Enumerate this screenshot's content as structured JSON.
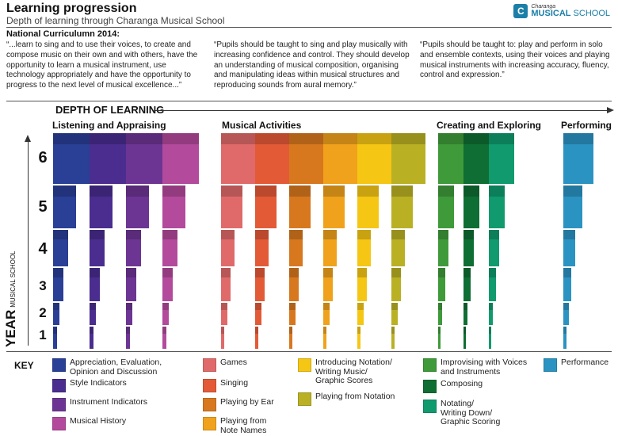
{
  "header": {
    "title": "Learning progression",
    "subtitle": "Depth of learning through Charanga Musical School",
    "logo_small": "Charanga",
    "logo_big_bold": "MUSICAL",
    "logo_big_rest": " SCHOOL"
  },
  "curriculum": {
    "heading": "National Curriculumn 2014:",
    "quotes": [
      "“...learn to sing and to use their voices, to create and compose music on their own and with others, have the opportunity to learn a musical instrument, use technology appropriately and have the opportunity to progress to the next level of musical excellence...”",
      "“Pupils should be taught to sing and play musically with increasing confidence and control. They should develop an understanding of musical composition, organising and manipulating ideas within musical structures and reproducing sounds from aural memory.”",
      "“Pupils should be taught to: play and perform in solo and ensemble contexts, using their voices and playing musical instruments with increasing accuracy, fluency, control and expression.”"
    ]
  },
  "diagram": {
    "depth_label": "DEPTH OF LEARNING",
    "sections": [
      "Listening and Appraising",
      "Musical Activities",
      "Creating and Exploring",
      "Performing"
    ],
    "axis_label_big": "YEAR",
    "axis_label_small": "MUSICAL SCHOOL",
    "years": [
      "6",
      "5",
      "4",
      "3",
      "2",
      "1"
    ],
    "depth_fraction_by_year": {
      "1": 0.12,
      "2": 0.2,
      "3": 0.3,
      "4": 0.43,
      "5": 0.65,
      "6": 1.0
    },
    "activities": [
      {
        "name": "Appreciation, Evaluation, Opinion and Discussion",
        "color": "#2a3f96",
        "group": 0
      },
      {
        "name": "Style Indicators",
        "color": "#4a2d8f",
        "group": 0
      },
      {
        "name": "Instrument Indicators",
        "color": "#6d3593",
        "group": 0
      },
      {
        "name": "Musical History",
        "color": "#b34a9c",
        "group": 0
      },
      {
        "name": "Games",
        "color": "#e06a6a",
        "group": 1
      },
      {
        "name": "Singing",
        "color": "#e35a37",
        "group": 1
      },
      {
        "name": "Playing by Ear",
        "color": "#d7781f",
        "group": 1
      },
      {
        "name": "Playing from Note Names",
        "color": "#f0a21c",
        "group": 1
      },
      {
        "name": "Introducing Notation/ Writing Music/ Graphic Scores",
        "color": "#f5c614",
        "group": 1
      },
      {
        "name": "Playing from Notation",
        "color": "#b9b024",
        "group": 1
      },
      {
        "name": "Improvising with Voices and Instruments",
        "color": "#3f9a3a",
        "group": 2
      },
      {
        "name": "Composing",
        "color": "#0f6e33",
        "group": 2
      },
      {
        "name": "Notating/ Writing Down/ Graphic Scoring",
        "color": "#109a6e",
        "group": 2
      },
      {
        "name": "Performance",
        "color": "#2b93c2",
        "group": 3
      }
    ]
  },
  "key": {
    "label": "KEY",
    "items": [
      {
        "label": "Appreciation, Evaluation,\nOpinion and Discussion",
        "color": "#2a3f96"
      },
      {
        "label": "Style Indicators",
        "color": "#4a2d8f"
      },
      {
        "label": "Instrument Indicators",
        "color": "#6d3593"
      },
      {
        "label": "Musical History",
        "color": "#b34a9c"
      },
      {
        "label": "Games",
        "color": "#e06a6a"
      },
      {
        "label": "Singing",
        "color": "#e35a37"
      },
      {
        "label": "Playing by Ear",
        "color": "#d7781f"
      },
      {
        "label": "Playing from\nNote Names",
        "color": "#f0a21c"
      },
      {
        "label": "Introducing Notation/\nWriting Music/\nGraphic Scores",
        "color": "#f5c614"
      },
      {
        "label": "Playing from Notation",
        "color": "#b9b024"
      },
      {
        "label": "Improvising with Voices\nand Instruments",
        "color": "#3f9a3a"
      },
      {
        "label": "Composing",
        "color": "#0f6e33"
      },
      {
        "label": "Notating/\nWriting Down/\nGraphic Scoring",
        "color": "#109a6e"
      },
      {
        "label": "Performance",
        "color": "#2b93c2"
      }
    ]
  }
}
